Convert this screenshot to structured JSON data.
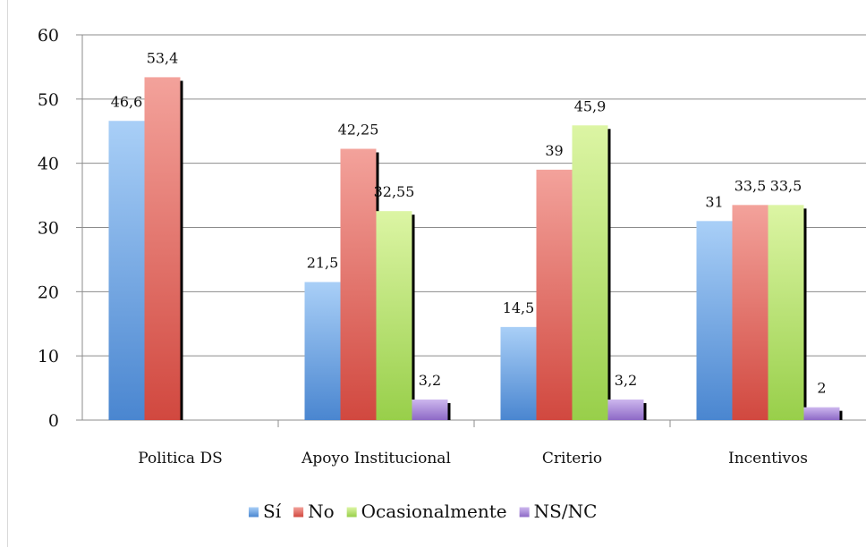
{
  "chart_data": {
    "type": "bar",
    "categories": [
      "Politica DS",
      "Apoyo Institucional",
      "Criterio",
      "Incentivos"
    ],
    "series": [
      {
        "name": "Sí",
        "color": "#6fa8e8",
        "values": [
          46.6,
          21.5,
          14.5,
          31
        ],
        "labels": [
          "46,6",
          "21,5",
          "14,5",
          "31"
        ]
      },
      {
        "name": "No",
        "color": "#e2655f",
        "values": [
          53.4,
          42.25,
          39,
          33.5
        ],
        "labels": [
          "53,4",
          "42,25",
          "39",
          "33,5"
        ]
      },
      {
        "name": "Ocasionalmente",
        "color": "#b6e06a",
        "values": [
          null,
          32.55,
          45.9,
          33.5
        ],
        "labels": [
          null,
          "32,55",
          "45,9",
          "33,5"
        ]
      },
      {
        "name": "NS/NC",
        "color": "#a98bd6",
        "values": [
          null,
          3.2,
          3.2,
          2
        ],
        "labels": [
          null,
          "3,2",
          "3,2",
          "2"
        ]
      }
    ],
    "yticks": [
      "0",
      "10",
      "20",
      "30",
      "40",
      "50",
      "60"
    ],
    "ylim": [
      0,
      60
    ],
    "grid": true,
    "legend": "bottom"
  }
}
